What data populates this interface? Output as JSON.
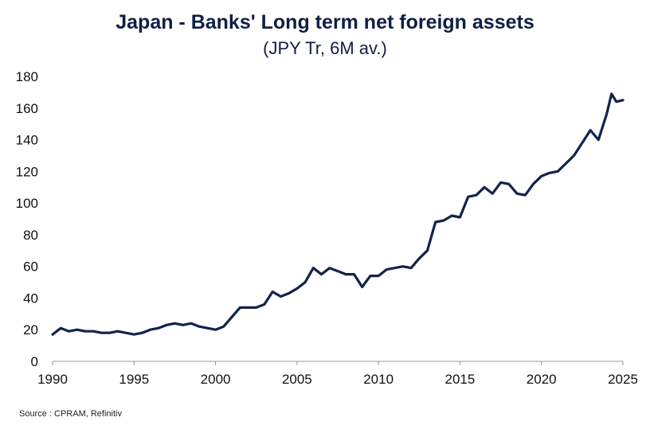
{
  "chart_data": {
    "type": "line",
    "title": "Japan - Banks' Long term net foreign assets",
    "subtitle": "(JPY Tr, 6M av.)",
    "xlabel": "",
    "ylabel": "",
    "xlim": [
      1990,
      2025
    ],
    "ylim": [
      0,
      180
    ],
    "x_ticks": [
      1990,
      1995,
      2000,
      2005,
      2010,
      2015,
      2020,
      2025
    ],
    "y_ticks": [
      0,
      20,
      40,
      60,
      80,
      100,
      120,
      140,
      160,
      180
    ],
    "grid": false,
    "legend": "none",
    "line_color": "#13234b",
    "series": [
      {
        "x": [
          1990.0,
          1990.5,
          1991.0,
          1991.5,
          1992.0,
          1992.5,
          1993.0,
          1993.5,
          1994.0,
          1994.5,
          1995.0,
          1995.5,
          1996.0,
          1996.5,
          1997.0,
          1997.5,
          1998.0,
          1998.5,
          1999.0,
          1999.5,
          2000.0,
          2000.5,
          2001.0,
          2001.5,
          2002.0,
          2002.5,
          2003.0,
          2003.5,
          2004.0,
          2004.5,
          2005.0,
          2005.5,
          2006.0,
          2006.5,
          2007.0,
          2007.5,
          2008.0,
          2008.5,
          2009.0,
          2009.5,
          2010.0,
          2010.5,
          2011.0,
          2011.5,
          2012.0,
          2012.5,
          2013.0,
          2013.5,
          2014.0,
          2014.5,
          2015.0,
          2015.5,
          2016.0,
          2016.5,
          2017.0,
          2017.5,
          2018.0,
          2018.5,
          2019.0,
          2019.5,
          2020.0,
          2020.5,
          2021.0,
          2021.5,
          2022.0,
          2022.5,
          2023.0,
          2023.5,
          2024.0,
          2024.3,
          2024.6,
          2025.0
        ],
        "y": [
          17,
          21,
          19,
          20,
          19,
          19,
          18,
          18,
          19,
          18,
          17,
          18,
          20,
          21,
          23,
          24,
          23,
          24,
          22,
          21,
          20,
          22,
          28,
          34,
          34,
          34,
          36,
          44,
          41,
          43,
          46,
          50,
          59,
          55,
          59,
          57,
          55,
          55,
          47,
          54,
          54,
          58,
          59,
          60,
          59,
          65,
          70,
          88,
          89,
          92,
          91,
          104,
          105,
          110,
          106,
          113,
          112,
          106,
          105,
          112,
          117,
          119,
          120,
          125,
          130,
          138,
          146,
          140,
          156,
          169,
          164,
          165
        ]
      }
    ],
    "source": "Source : CPRAM, Refinitiv"
  }
}
